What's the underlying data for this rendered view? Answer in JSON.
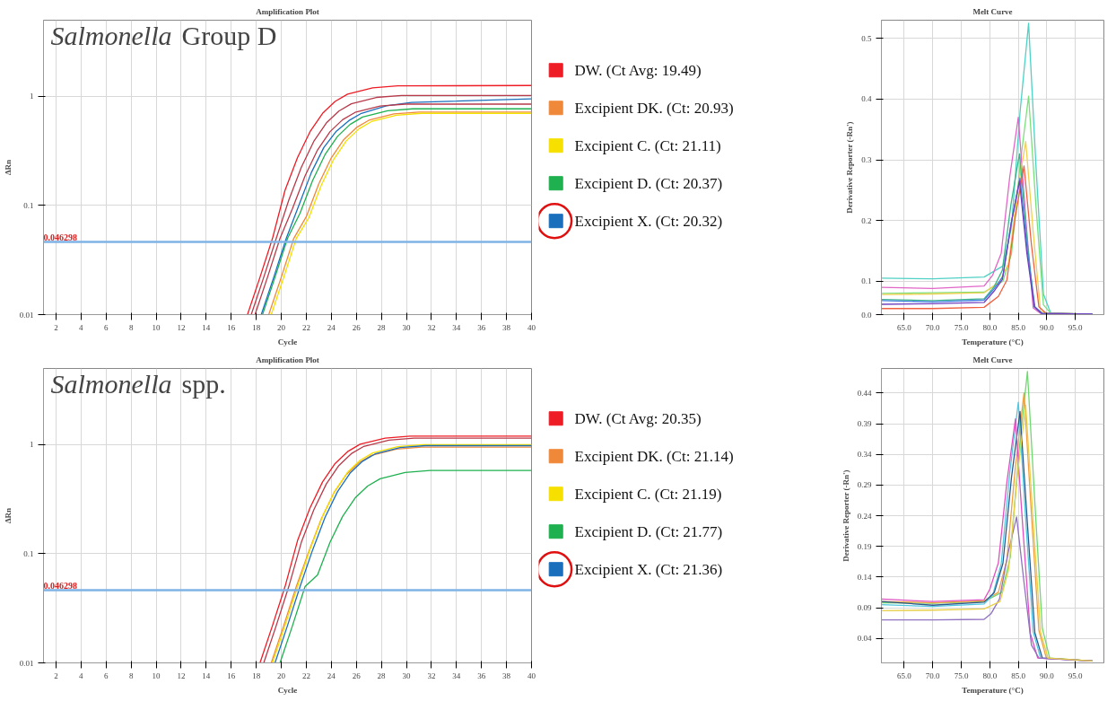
{
  "chart_data": [
    {
      "type": "line",
      "title": "Amplification Plot",
      "annotations": [
        "Salmonella Group D"
      ],
      "xlabel": "Cycle",
      "ylabel": "ΔRn",
      "xlim": [
        1,
        40
      ],
      "xticks": [
        2,
        4,
        6,
        8,
        10,
        12,
        14,
        16,
        18,
        20,
        22,
        24,
        26,
        28,
        30,
        32,
        34,
        36,
        38,
        40
      ],
      "ylim": [
        0.01,
        5
      ],
      "yticks": [
        0.01,
        0.1,
        1
      ],
      "log": true,
      "grid": true,
      "legend": "right",
      "ref_lines": [
        {
          "axis": "y",
          "value": 0.046298,
          "label": "0.046298",
          "color": "#7fb3e6"
        }
      ],
      "series": [
        {
          "name": "DW. (Ct Avg: 19.49)",
          "color": "#ee1c25",
          "x": [
            17.3,
            18.3,
            19.3,
            20.3,
            21.3,
            22.3,
            23.3,
            24.3,
            25.3,
            27.3,
            29.3,
            40
          ],
          "values": [
            0.01,
            0.022,
            0.05,
            0.138,
            0.275,
            0.475,
            0.7,
            0.9,
            1.05,
            1.2,
            1.25,
            1.26
          ]
        },
        {
          "name": "Excipient DK. (Ct: 20.93)",
          "color": "#f0883a",
          "x": [
            19,
            20,
            21,
            22,
            23,
            24,
            25,
            26,
            27,
            29,
            31,
            40
          ],
          "values": [
            0.01,
            0.022,
            0.05,
            0.079,
            0.158,
            0.274,
            0.403,
            0.518,
            0.605,
            0.691,
            0.72,
            0.72
          ]
        },
        {
          "name": "Excipient C. (Ct: 21.11)",
          "color": "#f5e000",
          "x": [
            19.2,
            20.2,
            21.2,
            22.2,
            23.2,
            24.2,
            25.2,
            26.2,
            27.2,
            29.2,
            31.2,
            40
          ],
          "values": [
            0.01,
            0.022,
            0.05,
            0.077,
            0.154,
            0.266,
            0.392,
            0.504,
            0.588,
            0.672,
            0.7,
            0.7
          ]
        },
        {
          "name": "Excipient D. (Ct: 20.37)",
          "color": "#1fb04f",
          "x": [
            18.5,
            19.5,
            20.5,
            21.5,
            22.5,
            23.5,
            24.5,
            25.5,
            26.5,
            28.5,
            30.5,
            40
          ],
          "values": [
            0.01,
            0.022,
            0.05,
            0.085,
            0.169,
            0.293,
            0.431,
            0.554,
            0.647,
            0.739,
            0.77,
            0.77
          ]
        },
        {
          "name": "Excipient X. (Ct: 20.32)",
          "color": "#1a6fbd",
          "x": [
            18.4,
            19.4,
            20.4,
            21.4,
            22.4,
            23.4,
            24.4,
            25.4,
            26.4,
            28.4,
            30.4,
            40
          ],
          "values": [
            0.01,
            0.022,
            0.05,
            0.1,
            0.2,
            0.34,
            0.48,
            0.6,
            0.7,
            0.82,
            0.88,
            0.95
          ]
        },
        {
          "color": "#b83a4a",
          "x": [
            17.6,
            18.6,
            19.6,
            20.6,
            21.6,
            22.6,
            23.6,
            24.6,
            25.6,
            27.6,
            29.6,
            40
          ],
          "values": [
            0.01,
            0.022,
            0.05,
            0.112,
            0.224,
            0.388,
            0.571,
            0.734,
            0.857,
            0.98,
            1.02,
            1.02
          ]
        },
        {
          "color": "#b83a4a",
          "x": [
            17.9,
            18.9,
            19.9,
            20.9,
            21.9,
            22.9,
            23.9,
            24.9,
            25.9,
            27.9,
            29.9,
            40
          ],
          "values": [
            0.01,
            0.022,
            0.05,
            0.094,
            0.187,
            0.323,
            0.476,
            0.612,
            0.714,
            0.816,
            0.85,
            0.85
          ]
        }
      ]
    },
    {
      "type": "line",
      "title": "Melt Curve",
      "xlabel": "Temperature (°C)",
      "ylabel": "Derivative Reporter (-Rn')",
      "xlim": [
        61,
        100
      ],
      "xticks": [
        {
          "value": 65,
          "label": "65.0"
        },
        {
          "value": 70,
          "label": "70.0"
        },
        {
          "value": 75,
          "label": "75.0"
        },
        {
          "value": 80,
          "label": "80.0"
        },
        {
          "value": 85,
          "label": "85.0"
        },
        {
          "value": 90,
          "label": "90.0"
        },
        {
          "value": 95,
          "label": "95.0"
        }
      ],
      "ylim": [
        0.045,
        0.53
      ],
      "yticks": [
        {
          "value": 0.045,
          "label": "0.0"
        },
        0.1,
        0.2,
        0.3,
        0.4,
        0.5
      ],
      "grid": true,
      "series": [
        {
          "color": "#4fd1c5",
          "x": [
            61,
            70,
            79,
            82.3,
            83.8,
            85.3,
            86.8,
            88.1,
            89.4,
            90.7,
            98
          ],
          "values": [
            0.105,
            0.104,
            0.107,
            0.125,
            0.189,
            0.378,
            0.525,
            0.289,
            0.079,
            0.047,
            0.046
          ]
        },
        {
          "color": "#7be07b",
          "x": [
            61,
            70,
            79,
            82.3,
            83.8,
            85.3,
            86.8,
            88.1,
            89.4,
            90.7,
            98
          ],
          "values": [
            0.08,
            0.081,
            0.082,
            0.1,
            0.145,
            0.291,
            0.405,
            0.223,
            0.061,
            0.047,
            0.046
          ]
        },
        {
          "color": "#e066c8",
          "x": [
            61,
            70,
            79,
            80.5,
            82,
            83.5,
            85,
            86.3,
            87.6,
            88.9,
            98
          ],
          "values": [
            0.09,
            0.088,
            0.092,
            0.11,
            0.146,
            0.272,
            0.37,
            0.204,
            0.056,
            0.047,
            0.046
          ]
        },
        {
          "color": "#f0d050",
          "x": [
            61,
            70,
            79,
            81.8,
            83.3,
            84.8,
            86.3,
            87.6,
            88.9,
            90.2,
            98
          ],
          "values": [
            0.078,
            0.079,
            0.081,
            0.1,
            0.13,
            0.243,
            0.33,
            0.182,
            0.05,
            0.047,
            0.046
          ]
        },
        {
          "color": "#3cb48c",
          "x": [
            61,
            70,
            79,
            80.7,
            82.2,
            83.7,
            85.2,
            86.5,
            87.8,
            89.1,
            98
          ],
          "values": [
            0.07,
            0.068,
            0.071,
            0.09,
            0.118,
            0.226,
            0.31,
            0.171,
            0.058,
            0.047,
            0.046
          ]
        },
        {
          "color": "#f06040",
          "x": [
            61,
            70,
            79,
            81.5,
            83,
            84.5,
            86,
            87.3,
            88.6,
            89.9,
            98
          ],
          "values": [
            0.055,
            0.055,
            0.057,
            0.075,
            0.102,
            0.208,
            0.29,
            0.16,
            0.058,
            0.047,
            0.046
          ]
        },
        {
          "color": "#4080e0",
          "x": [
            61,
            70,
            79,
            80.8,
            82.3,
            83.8,
            85.3,
            86.6,
            87.9,
            89.2,
            98
          ],
          "values": [
            0.068,
            0.066,
            0.069,
            0.088,
            0.108,
            0.198,
            0.27,
            0.149,
            0.058,
            0.047,
            0.046
          ]
        },
        {
          "color": "#7040c0",
          "x": [
            61,
            70,
            79,
            80.7,
            82.2,
            83.7,
            85.2,
            86.5,
            87.8,
            89.1,
            98
          ],
          "values": [
            0.062,
            0.063,
            0.065,
            0.083,
            0.103,
            0.193,
            0.265,
            0.146,
            0.058,
            0.047,
            0.046
          ]
        }
      ]
    },
    {
      "type": "line",
      "title": "Amplification Plot",
      "annotations": [
        "Salmonella spp."
      ],
      "xlabel": "Cycle",
      "ylabel": "ΔRn",
      "xlim": [
        1,
        40
      ],
      "xticks": [
        2,
        4,
        6,
        8,
        10,
        12,
        14,
        16,
        18,
        20,
        22,
        24,
        26,
        28,
        30,
        32,
        34,
        36,
        38,
        40
      ],
      "ylim": [
        0.01,
        5
      ],
      "yticks": [
        0.01,
        0.1,
        1
      ],
      "log": true,
      "grid": true,
      "legend": "right",
      "ref_lines": [
        {
          "axis": "y",
          "value": 0.046298,
          "label": "0.046298",
          "color": "#7fb3e6"
        }
      ],
      "series": [
        {
          "name": "DW. (Ct Avg: 20.35)",
          "color": "#ee1c25",
          "x": [
            18.3,
            19.3,
            20.3,
            21.3,
            22.3,
            23.3,
            24.3,
            25.3,
            26.3,
            28.3,
            30.3,
            40
          ],
          "values": [
            0.01,
            0.022,
            0.05,
            0.132,
            0.264,
            0.456,
            0.672,
            0.864,
            1.01,
            1.15,
            1.2,
            1.2
          ]
        },
        {
          "name": "Excipient DK. (Ct: 21.14)",
          "color": "#f0883a",
          "x": [
            19.2,
            20.2,
            21.2,
            22.2,
            23.2,
            24.2,
            25.2,
            26.2,
            27.2,
            29.2,
            31.2,
            40
          ],
          "values": [
            0.01,
            0.022,
            0.05,
            0.105,
            0.209,
            0.361,
            0.532,
            0.684,
            0.798,
            0.912,
            0.95,
            0.95
          ]
        },
        {
          "name": "Excipient C. (Ct: 21.19)",
          "color": "#f5e000",
          "x": [
            19.3,
            20.3,
            21.3,
            22.3,
            23.3,
            24.3,
            25.3,
            26.3,
            27.3,
            29.3,
            31.3,
            40
          ],
          "values": [
            0.01,
            0.022,
            0.05,
            0.11,
            0.22,
            0.38,
            0.56,
            0.72,
            0.84,
            0.96,
            1.0,
            1.0
          ]
        },
        {
          "name": "Excipient D. (Ct: 21.77)",
          "color": "#1fb04f",
          "x": [
            19.9,
            20.9,
            21.9,
            22.9,
            23.9,
            24.9,
            25.9,
            26.9,
            27.9,
            29.9,
            31.9,
            40
          ],
          "values": [
            0.01,
            0.022,
            0.05,
            0.064,
            0.128,
            0.22,
            0.325,
            0.418,
            0.487,
            0.557,
            0.58,
            0.58
          ]
        },
        {
          "name": "Excipient X. (Ct: 21.36)",
          "color": "#1a6fbd",
          "x": [
            19.5,
            20.5,
            21.5,
            22.5,
            23.5,
            24.5,
            25.5,
            26.5,
            27.5,
            29.5,
            31.5,
            40
          ],
          "values": [
            0.01,
            0.022,
            0.05,
            0.108,
            0.216,
            0.372,
            0.549,
            0.706,
            0.823,
            0.941,
            0.98,
            0.98
          ]
        },
        {
          "color": "#b83a4a",
          "x": [
            18.6,
            19.6,
            20.6,
            21.6,
            22.6,
            23.6,
            24.6,
            25.6,
            26.6,
            28.6,
            30.6,
            40
          ],
          "values": [
            0.01,
            0.022,
            0.05,
            0.127,
            0.253,
            0.437,
            0.644,
            0.828,
            0.966,
            1.1,
            1.15,
            1.15
          ]
        }
      ]
    },
    {
      "type": "line",
      "title": "Melt Curve",
      "xlabel": "Temperature (°C)",
      "ylabel": "Derivative Reporter (-Rn')",
      "xlim": [
        61,
        100
      ],
      "xticks": [
        {
          "value": 65,
          "label": "65.0"
        },
        {
          "value": 70,
          "label": "70.0"
        },
        {
          "value": 75,
          "label": "75.0"
        },
        {
          "value": 80,
          "label": "80.0"
        },
        {
          "value": 85,
          "label": "85.0"
        },
        {
          "value": 90,
          "label": "90.0"
        },
        {
          "value": 95,
          "label": "95.0"
        }
      ],
      "ylim": [
        0,
        0.48
      ],
      "yticks": [
        0.04,
        0.09,
        0.14,
        0.19,
        0.24,
        0.29,
        0.34,
        0.39,
        0.44
      ],
      "grid": true,
      "series": [
        {
          "color": "#70d870",
          "x": [
            61,
            70,
            79,
            82.1,
            83.6,
            85.1,
            86.6,
            87.9,
            89.2,
            90.5,
            98
          ],
          "values": [
            0.098,
            0.097,
            0.1,
            0.115,
            0.173,
            0.343,
            0.475,
            0.261,
            0.057,
            0.008,
            0.003
          ]
        },
        {
          "color": "#f0a040",
          "x": [
            61,
            70,
            79,
            81.5,
            83,
            84.5,
            86,
            87.3,
            88.6,
            89.9,
            98
          ],
          "values": [
            0.1,
            0.098,
            0.101,
            0.115,
            0.168,
            0.321,
            0.44,
            0.242,
            0.053,
            0.008,
            0.003
          ]
        },
        {
          "color": "#50c8e0",
          "x": [
            61,
            70,
            79,
            80.5,
            82,
            83.5,
            85,
            86.3,
            87.6,
            88.9,
            98
          ],
          "values": [
            0.095,
            0.092,
            0.096,
            0.11,
            0.161,
            0.31,
            0.425,
            0.234,
            0.051,
            0.008,
            0.003
          ]
        },
        {
          "color": "#305890",
          "x": [
            61,
            70,
            79,
            80.8,
            82.3,
            83.8,
            85.3,
            86.6,
            87.9,
            89.2,
            98
          ],
          "values": [
            0.1,
            0.094,
            0.099,
            0.115,
            0.162,
            0.302,
            0.41,
            0.226,
            0.049,
            0.008,
            0.003
          ]
        },
        {
          "color": "#e050c0",
          "x": [
            61,
            70,
            79,
            80,
            81.5,
            83,
            84.5,
            85.8,
            87.1,
            88.4,
            98
          ],
          "values": [
            0.104,
            0.1,
            0.103,
            0.12,
            0.163,
            0.295,
            0.398,
            0.219,
            0.048,
            0.008,
            0.003
          ]
        },
        {
          "color": "#9070c0",
          "x": [
            61,
            70,
            79,
            80.2,
            81.7,
            83.2,
            84.7,
            86,
            87.3,
            88.6,
            98
          ],
          "values": [
            0.07,
            0.07,
            0.071,
            0.08,
            0.104,
            0.179,
            0.238,
            0.131,
            0.029,
            0.008,
            0.003
          ]
        },
        {
          "color": "#e8d048",
          "x": [
            61,
            70,
            79,
            81.8,
            83.3,
            84.8,
            86.3,
            87.6,
            88.9,
            90.2,
            98
          ],
          "values": [
            0.085,
            0.086,
            0.088,
            0.1,
            0.152,
            0.303,
            0.42,
            0.231,
            0.05,
            0.008,
            0.003
          ]
        }
      ]
    }
  ]
}
